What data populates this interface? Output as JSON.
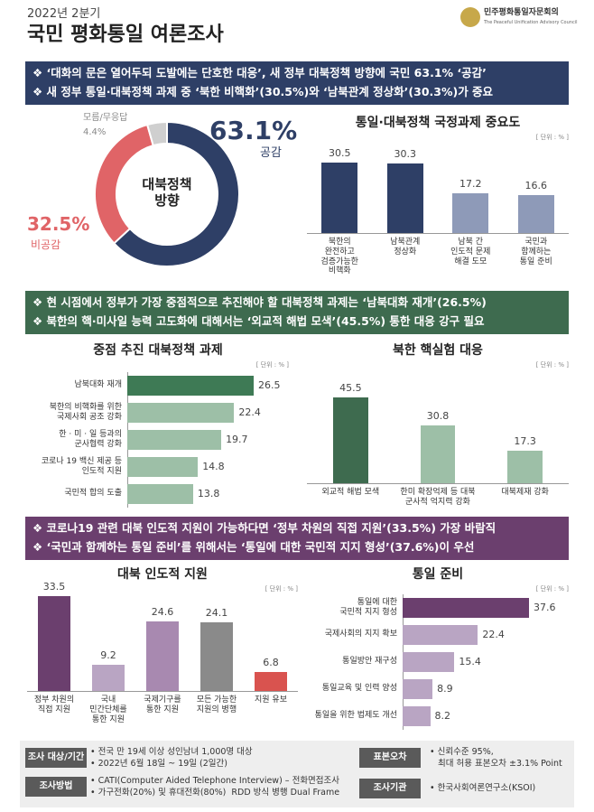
{
  "header": {
    "period": "2022년 2분기",
    "title": "국민 평화통일 여론조사",
    "org": "민주평화통일자문회의",
    "org_en": "The Peaceful Unification Advisory Council"
  },
  "banners": [
    {
      "color": "#2e3f66",
      "lines": [
        "❖ ‘대화의 문은 열어두되 도발에는 단호한 대응’, 새 정부 대북정책 방향에 국민 63.1% ‘공감’",
        "❖ 새 정부 통일·대북정책 과제 중 ‘북한 비핵화’(30.5%)와 ‘남북관계 정상화’(30.3%)가 중요"
      ]
    },
    {
      "color": "#3e6b4f",
      "lines": [
        "❖ 현 시점에서 정부가 가장 중점적으로 추진해야 할 대북정책 과제는 ‘남북대화 재개’(26.5%)",
        "❖ 북한의 핵·미사일 능력 고도화에 대해서는 ‘외교적 해법 모색’(45.5%) 통한 대응 강구 필요"
      ]
    },
    {
      "color": "#6b3f6e",
      "lines": [
        "❖ 코로나19 관련 대북 인도적 지원이 가능하다면 ‘정부 차원의 직접 지원’(33.5%) 가장 바람직",
        "❖ ‘국민과 함께하는 통일 준비’를 위해서는 ‘통일에 대한 국민적 지지 형성’(37.6%)이 우선"
      ]
    }
  ],
  "chart_data": [
    {
      "type": "pie",
      "center_label": "대북정책\n방향",
      "categories": [
        "공감",
        "비공감",
        "모름/무응답"
      ],
      "values": [
        63.1,
        32.5,
        4.4
      ],
      "value_labels": [
        "63.1%",
        "32.5%",
        "4.4%"
      ],
      "colors": [
        "#2e3f66",
        "#e06467",
        "#cfcfcf"
      ]
    },
    {
      "type": "bar",
      "title": "통일·대북정책 국정과제 중요도",
      "unit": "[ 단위 : % ]",
      "categories": [
        "북한의\n완전하고\n검증가능한\n비핵화",
        "남북관계\n정상화",
        "남북 간\n인도적 문제\n해결 도모",
        "국민과\n함께하는\n통일 준비"
      ],
      "values": [
        30.5,
        30.3,
        17.2,
        16.6
      ],
      "colors": [
        "#2e3f66",
        "#2e3f66",
        "#8e9ab8",
        "#8e9ab8"
      ]
    },
    {
      "type": "hbar",
      "title": "중점 추진 대북정책 과제",
      "unit": "[ 단위 : % ]",
      "categories": [
        "남북대화 재개",
        "북한의 비핵화를 위한\n국제사회 공조 강화",
        "한 · 미 · 일 등과의\n군사협력 강화",
        "코로나 19 백신 제공 등\n인도적 지원",
        "국민적 합의 도출"
      ],
      "values": [
        26.5,
        22.4,
        19.7,
        14.8,
        13.8
      ],
      "colors": [
        "#3e7a55",
        "#9dbfa7",
        "#9dbfa7",
        "#9dbfa7",
        "#9dbfa7"
      ]
    },
    {
      "type": "bar",
      "title": "북한 핵실험 대응",
      "unit": "[ 단위 : % ]",
      "categories": [
        "외교적 해법 모색",
        "한미 확장억제 등 대북\n군사적 억지력 강화",
        "대북제재 강화"
      ],
      "values": [
        45.5,
        30.8,
        17.3
      ],
      "colors": [
        "#3e6b4f",
        "#9dbfa7",
        "#9dbfa7"
      ]
    },
    {
      "type": "bar",
      "title": "대북 인도적 지원",
      "unit": "[ 단위 : % ]",
      "categories": [
        "정부 차원의\n직접 지원",
        "국내\n민간단체를\n통한 지원",
        "국제기구를\n통한 지원",
        "모든 가능한\n지원의 병행",
        "지원 유보"
      ],
      "values": [
        33.5,
        9.2,
        24.6,
        24.1,
        6.8
      ],
      "colors": [
        "#6b3f6e",
        "#b9a5c3",
        "#a889b0",
        "#8a8a8a",
        "#d9534f"
      ]
    },
    {
      "type": "hbar",
      "title": "통일 준비",
      "unit": "[ 단위 : % ]",
      "categories": [
        "통일에 대한\n국민적 지지 형성",
        "국제사회의 지지 확보",
        "통일방안 재구성",
        "통일교육 및 인력 양성",
        "통일을 위한 법제도 개선"
      ],
      "values": [
        37.6,
        22.4,
        15.4,
        8.9,
        8.2
      ],
      "colors": [
        "#6b3f6e",
        "#b9a5c3",
        "#b9a5c3",
        "#b9a5c3",
        "#b9a5c3"
      ]
    }
  ],
  "footer": [
    {
      "label": "조사 대상/기간",
      "lines": [
        "• 전국 만 19세 이상 성인남녀 1,000명 대상",
        "• 2022년 6월 18일 ~ 19일 (2일간)"
      ]
    },
    {
      "label": "조사방법",
      "lines": [
        "• CATI(Computer Aided Telephone Interview) – 전화면접조사",
        "• 가구전화(20%) 및 휴대전화(80%)  RDD 방식 병행 Dual Frame"
      ]
    },
    {
      "label": "표본오차",
      "lines": [
        "• 신뢰수준 95%,",
        "   최대 허용 표본오차 ±3.1% Point"
      ]
    },
    {
      "label": "조사기관",
      "lines": [
        "• 한국사회여론연구소(KSOI)"
      ]
    }
  ]
}
